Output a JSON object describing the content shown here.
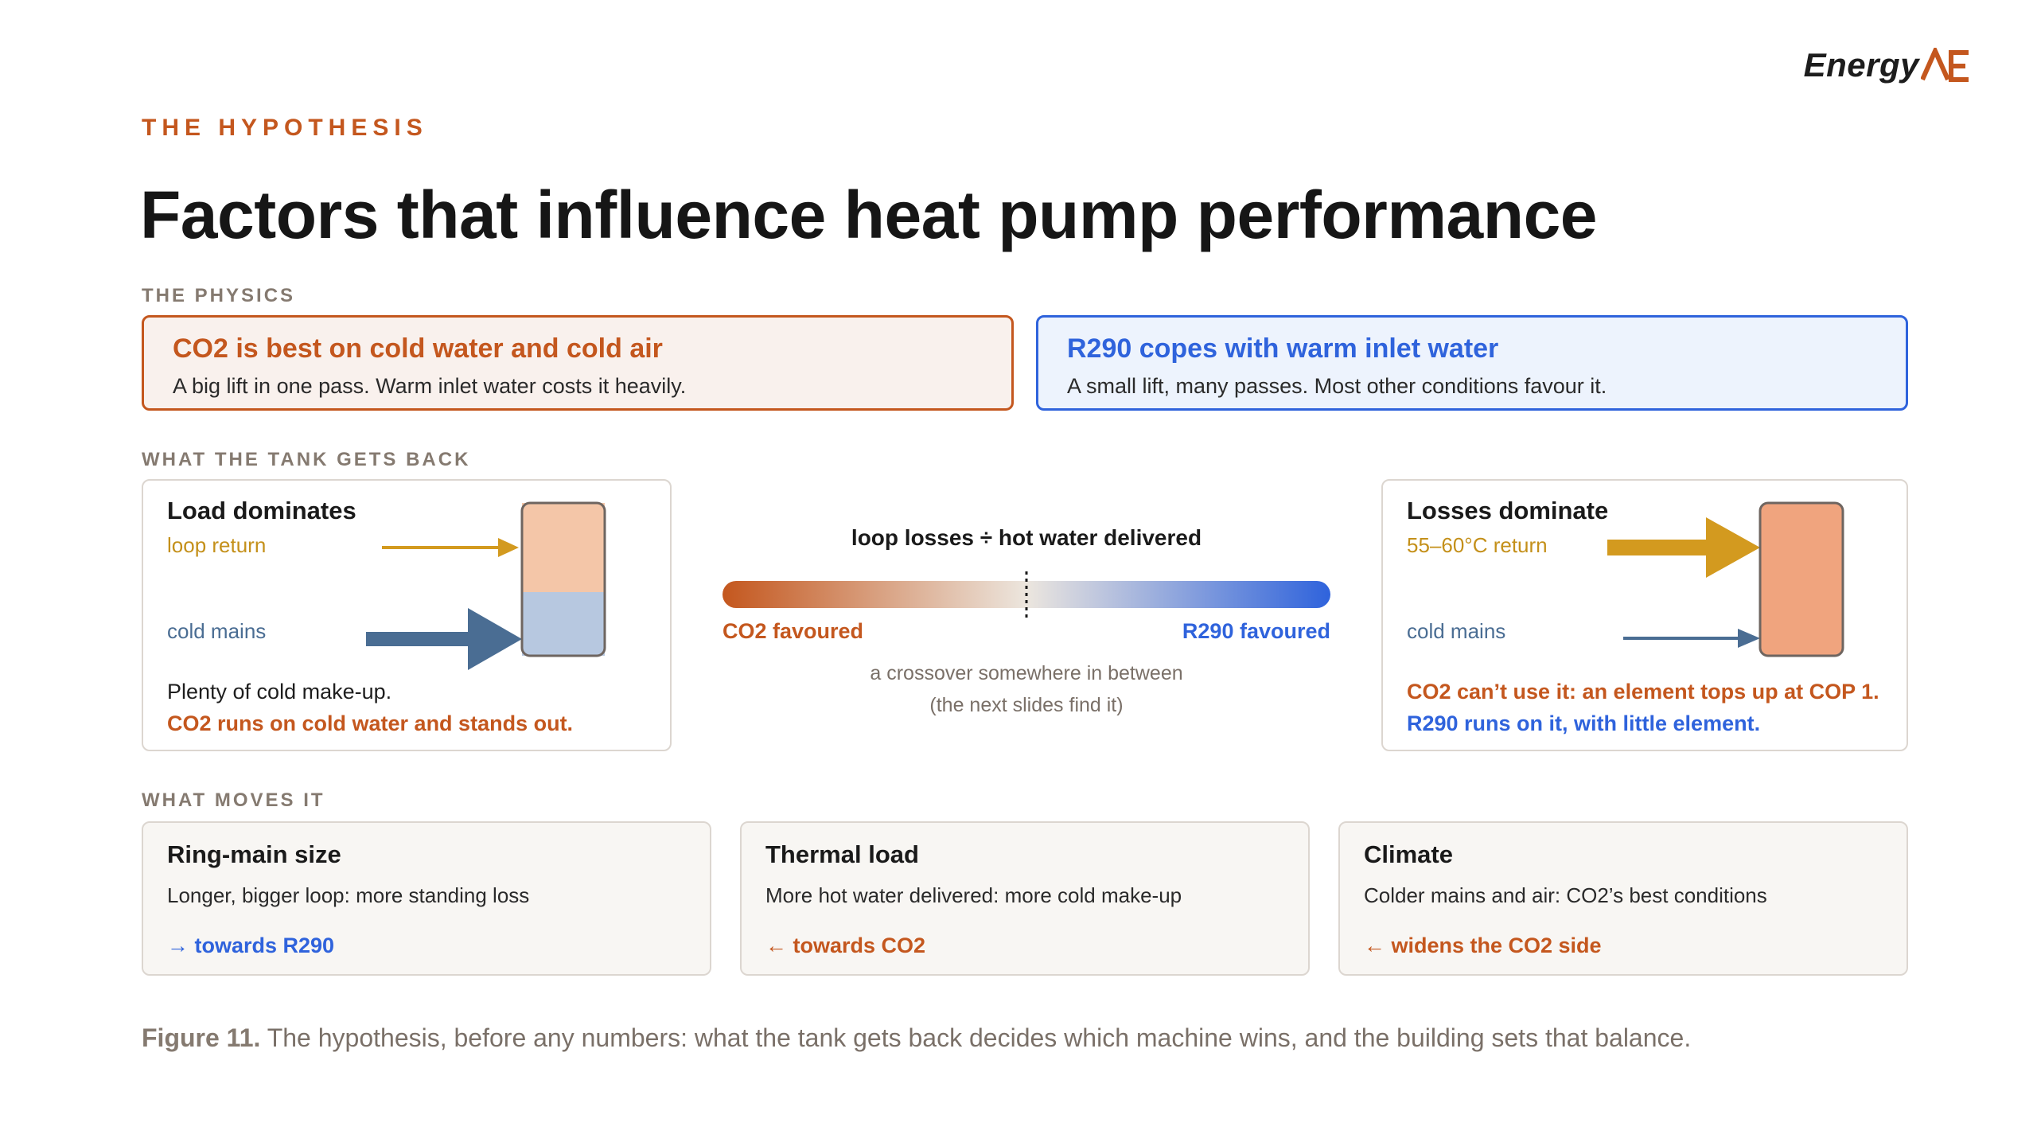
{
  "logo": {
    "text": "Energy",
    "mark": "AE-logo-mark"
  },
  "eyebrow": "THE HYPOTHESIS",
  "title": "Factors that influence heat pump performance",
  "physics": {
    "label": "THE PHYSICS",
    "co2": {
      "title": "CO2 is best on cold water and cold air",
      "text": "A big lift in one pass. Warm inlet water costs it heavily."
    },
    "r290": {
      "title": "R290 copes with warm inlet water",
      "text": "A small lift, many passes. Most other conditions favour it."
    }
  },
  "tank": {
    "label": "WHAT THE TANK GETS BACK",
    "left": {
      "title": "Load dominates",
      "return_label": "loop return",
      "mains_label": "cold mains",
      "foot1": "Plenty of cold make-up.",
      "foot2": "CO2 runs on cold water and stands out."
    },
    "right": {
      "title": "Losses dominate",
      "return_label": "55–60°C return",
      "mains_label": "cold mains",
      "foot1": "CO2 can’t use it: an element tops up at COP 1.",
      "foot2": "R290 runs on it, with little element."
    },
    "scale": {
      "title": "loop losses ÷ hot water delivered",
      "left": "CO2 favoured",
      "right": "R290 favoured",
      "note1": "a crossover somewhere in between",
      "note2": "(the next slides find it)"
    }
  },
  "moves": {
    "label": "WHAT MOVES IT",
    "items": [
      {
        "title": "Ring-main size",
        "text": "Longer, bigger loop: more standing loss",
        "direction": "→ towards R290"
      },
      {
        "title": "Thermal load",
        "text": "More hot water delivered: more cold make-up",
        "direction": "← towards CO2"
      },
      {
        "title": "Climate",
        "text": "Colder mains and air: CO2’s best conditions",
        "direction": "← widens the CO2 side"
      }
    ]
  },
  "caption": {
    "prefix": "Figure 11.",
    "text": " The hypothesis, before any numbers: what the tank gets back decides which machine wins, and the building sets that balance."
  },
  "colors": {
    "co2": "#c4571e",
    "r290": "#2f63dc",
    "gold": "#d39a1f",
    "slate": "#4a6d93",
    "tank_warm": "#f4c6a8",
    "tank_cold": "#b7c8e0",
    "tank_hot": "#f0a47e"
  }
}
